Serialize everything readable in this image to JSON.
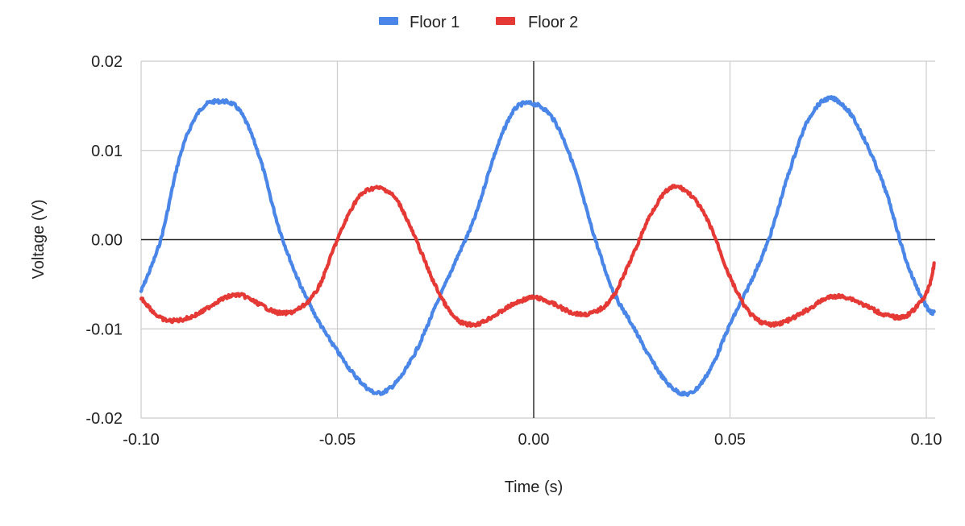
{
  "chart_data": {
    "type": "line",
    "title": "",
    "xlabel": "Time (s)",
    "ylabel": "Voltage (V)",
    "xlim": [
      -0.1,
      0.1
    ],
    "ylim": [
      -0.02,
      0.02
    ],
    "x_ticks": [
      -0.1,
      -0.05,
      0.0,
      0.05,
      0.1
    ],
    "y_ticks": [
      -0.02,
      -0.01,
      0.0,
      0.01,
      0.02
    ],
    "x_tick_labels": [
      "-0.10",
      "-0.05",
      "0.00",
      "0.05",
      "0.10"
    ],
    "y_tick_labels": [
      "-0.02",
      "-0.01",
      "0.00",
      "0.01",
      "0.02"
    ],
    "grid": true,
    "legend_position": "top-center",
    "series": [
      {
        "name": "Floor 1",
        "color": "#4a86e8",
        "points": [
          [
            -0.1,
            -0.0058
          ],
          [
            -0.095,
            0.0
          ],
          [
            -0.09,
            0.0095
          ],
          [
            -0.085,
            0.0145
          ],
          [
            -0.08,
            0.0155
          ],
          [
            -0.075,
            0.0145
          ],
          [
            -0.07,
            0.0095
          ],
          [
            -0.065,
            0.0015
          ],
          [
            -0.06,
            -0.0045
          ],
          [
            -0.055,
            -0.009
          ],
          [
            -0.05,
            -0.0125
          ],
          [
            -0.045,
            -0.0155
          ],
          [
            -0.04,
            -0.0172
          ],
          [
            -0.035,
            -0.016
          ],
          [
            -0.03,
            -0.0125
          ],
          [
            -0.025,
            -0.0075
          ],
          [
            -0.02,
            -0.0025
          ],
          [
            -0.015,
            0.0025
          ],
          [
            -0.01,
            0.0095
          ],
          [
            -0.005,
            0.0145
          ],
          [
            0.0,
            0.0152
          ],
          [
            0.005,
            0.0135
          ],
          [
            0.01,
            0.0085
          ],
          [
            0.015,
            0.001
          ],
          [
            0.02,
            -0.0055
          ],
          [
            0.025,
            -0.0095
          ],
          [
            0.03,
            -0.0135
          ],
          [
            0.035,
            -0.0165
          ],
          [
            0.04,
            -0.0172
          ],
          [
            0.045,
            -0.0145
          ],
          [
            0.05,
            -0.0095
          ],
          [
            0.055,
            -0.005
          ],
          [
            0.06,
            0.0002
          ],
          [
            0.065,
            0.0075
          ],
          [
            0.07,
            0.0135
          ],
          [
            0.075,
            0.0158
          ],
          [
            0.08,
            0.0145
          ],
          [
            0.085,
            0.0105
          ],
          [
            0.09,
            0.005
          ],
          [
            0.095,
            -0.0025
          ],
          [
            0.1,
            -0.0075
          ],
          [
            0.102,
            -0.0082
          ]
        ]
      },
      {
        "name": "Floor 2",
        "color": "#e53935",
        "points": [
          [
            -0.1,
            -0.0065
          ],
          [
            -0.095,
            -0.0088
          ],
          [
            -0.09,
            -0.009
          ],
          [
            -0.085,
            -0.0082
          ],
          [
            -0.08,
            -0.0068
          ],
          [
            -0.075,
            -0.0062
          ],
          [
            -0.07,
            -0.0072
          ],
          [
            -0.065,
            -0.0082
          ],
          [
            -0.06,
            -0.0078
          ],
          [
            -0.055,
            -0.0055
          ],
          [
            -0.05,
            0.0
          ],
          [
            -0.045,
            0.0045
          ],
          [
            -0.04,
            0.0058
          ],
          [
            -0.035,
            0.0045
          ],
          [
            -0.03,
            0.0
          ],
          [
            -0.025,
            -0.0052
          ],
          [
            -0.02,
            -0.0088
          ],
          [
            -0.015,
            -0.0095
          ],
          [
            -0.01,
            -0.0085
          ],
          [
            -0.005,
            -0.0072
          ],
          [
            0.0,
            -0.0065
          ],
          [
            0.005,
            -0.0072
          ],
          [
            0.01,
            -0.0082
          ],
          [
            0.015,
            -0.0082
          ],
          [
            0.02,
            -0.0065
          ],
          [
            0.025,
            -0.002
          ],
          [
            0.03,
            0.003
          ],
          [
            0.035,
            0.0058
          ],
          [
            0.04,
            0.005
          ],
          [
            0.045,
            0.0015
          ],
          [
            0.05,
            -0.0042
          ],
          [
            0.055,
            -0.0082
          ],
          [
            0.06,
            -0.0095
          ],
          [
            0.065,
            -0.009
          ],
          [
            0.07,
            -0.0078
          ],
          [
            0.075,
            -0.0065
          ],
          [
            0.08,
            -0.0065
          ],
          [
            0.085,
            -0.0075
          ],
          [
            0.09,
            -0.0085
          ],
          [
            0.095,
            -0.0085
          ],
          [
            0.1,
            -0.006
          ],
          [
            0.102,
            -0.0028
          ]
        ]
      }
    ]
  }
}
